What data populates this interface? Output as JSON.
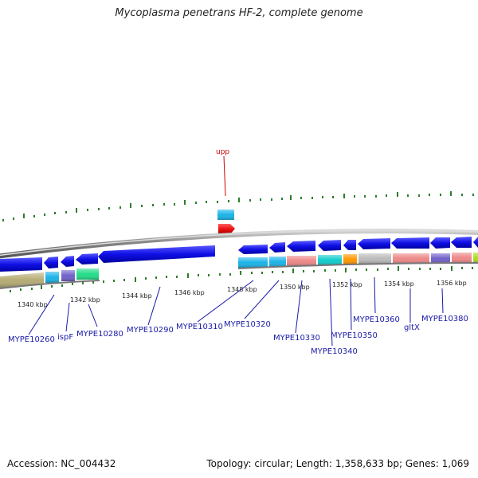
{
  "title": "Mycoplasma penetrans HF-2, complete genome",
  "footer": {
    "accession": "Accession: NC_004432",
    "summary": "Topology: circular; Length: 1,358,633 bp; Genes: 1,069"
  },
  "scale_labels": [
    "1340 kbp",
    "1342 kbp",
    "1344 kbp",
    "1346 kbp",
    "1348 kbp",
    "1350 kbp",
    "1352 kbp",
    "1354 kbp",
    "1356 kbp"
  ],
  "upper_gene_label": "upp",
  "gene_labels": [
    "MYPE10260",
    "ispF",
    "MYPE10280",
    "MYPE10290",
    "MYPE10310",
    "MYPE10320",
    "MYPE10330",
    "MYPE10340",
    "MYPE10350",
    "MYPE10360",
    "gltX",
    "MYPE10380"
  ],
  "colors": {
    "forward_gene": "#1515e0",
    "upp_gene": "#e81010",
    "tick": "#2e7d2e",
    "label_text": "#1a1aa8"
  }
}
